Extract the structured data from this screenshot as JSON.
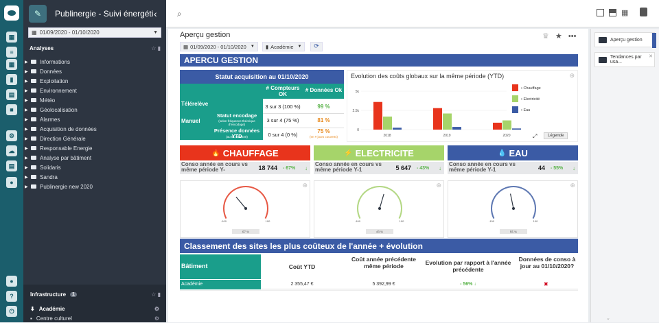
{
  "app": {
    "title": "Publinergie - Suivi énergéti..."
  },
  "sidebar": {
    "date_range": "01/09/2020 - 01/10/2020",
    "analyses_label": "Analyses",
    "items": [
      "Informations",
      "Données",
      "Exploitation",
      "Environnement",
      "Météo",
      "Géolocalisation",
      "Alarmes",
      "Acquisition de données",
      "Direction Générale",
      "Responsable Energie",
      "Analyse par bâtiment",
      "Solidaris",
      "Sandra",
      "Publinergie new 2020"
    ],
    "infra_label": "Infrastructure",
    "infra_count": "1",
    "infra_items": [
      "Académie",
      "Centre culturel"
    ]
  },
  "page": {
    "title": "Aperçu gestion",
    "date_filter": "01/09/2020 - 01/10/2020",
    "site_filter": "Académie",
    "section_title": "APERCU GESTION"
  },
  "right_panel": {
    "cards": [
      "Aperçu gestion",
      "Tendances par usa..."
    ]
  },
  "status": {
    "title": "Statut acquisition au 01/10/2020",
    "col1": "# Compteurs OK",
    "col2": "# Données Ok",
    "teleleve": "Télérelève",
    "manuel": "Manuel",
    "r1_counters": "3 sur 3 (100 %)",
    "r1_data": "99 %",
    "r2_label": "Statut encodage",
    "r2_note": "(selon fréquence théorique d'encodage)",
    "r2_counters": "3 sur 4 (75 %)",
    "r2_data": "81 %",
    "r3_label": "Présence données YTD",
    "r3_note": "(au 01/10/2020)",
    "r3_counters": "0 sur 4 (0 %)",
    "r3_data": "75 %",
    "r3_data_note": "(en # jours couverts)"
  },
  "chart_data": {
    "type": "bar",
    "title": "Evolution des coûts globaux sur la même période (YTD)",
    "categories": [
      "2018",
      "2019",
      "2020"
    ],
    "series": [
      {
        "name": "Chauffage",
        "values": [
          3600,
          2800,
          900
        ]
      },
      {
        "name": "Electricité",
        "values": [
          1700,
          2100,
          1200
        ]
      },
      {
        "name": "Eau",
        "values": [
          250,
          350,
          150
        ]
      }
    ],
    "yticks": [
      "0",
      "2.5k",
      "5k"
    ],
    "ylim": [
      0,
      5000
    ],
    "legend_button": "Légende",
    "colors": [
      "#e8341c",
      "#a6d46a",
      "#3b5ba5"
    ]
  },
  "kpis": [
    {
      "name": "CHAUFFAGE",
      "icon": "flame-icon",
      "glyph": "🔥",
      "color": "#e8341c",
      "sub_label": "Conso année en cours vs même période Y-",
      "value": "18 744",
      "pct": "- 67%",
      "gauge_pct": "67 %",
      "gauge": 0.33
    },
    {
      "name": "ELECTRICITE",
      "icon": "bolt-icon",
      "glyph": "⚡",
      "color": "#a6d46a",
      "sub_label": "Conso année en cours vs même période Y-1",
      "value": "5 647",
      "pct": "- 43%",
      "gauge_pct": "43 %",
      "gauge": 0.57
    },
    {
      "name": "EAU",
      "icon": "drop-icon",
      "glyph": "💧",
      "color": "#3b5ba5",
      "sub_label": "Conso année en cours vs même période Y-1",
      "value": "44",
      "pct": "- 55%",
      "gauge_pct": "55 %",
      "gauge": 0.45
    }
  ],
  "gauge_scale": {
    "min": "-100",
    "max": "100"
  },
  "ranking": {
    "title": "Classement des sites les plus coûteux de l'année + évolution",
    "headers": [
      "Bâtiment",
      "Coût YTD",
      "Coût année précédente même période",
      "Evolution par rapport à l'année précédente",
      "Données de conso à jour au 01/10/2020?"
    ],
    "rows": [
      {
        "building": "Académie",
        "cost": "2 355,47 €",
        "prev": "5 392,99 €",
        "evol": "- 56%"
      }
    ]
  }
}
